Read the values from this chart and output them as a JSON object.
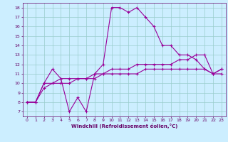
{
  "line1_x": [
    0,
    1,
    2,
    3,
    4,
    5,
    6,
    7,
    8,
    9,
    10,
    11,
    12,
    13,
    14,
    15,
    16,
    17,
    18,
    19,
    20,
    21,
    22,
    23
  ],
  "line1_y": [
    8,
    8,
    10,
    10,
    10.5,
    7,
    8.5,
    7,
    11,
    12,
    18,
    18,
    17.5,
    18,
    17,
    16,
    14,
    14,
    13,
    13,
    12.5,
    11.5,
    11,
    11.5
  ],
  "line2_x": [
    0,
    1,
    2,
    3,
    4,
    5,
    6,
    7,
    8,
    9,
    10,
    11,
    12,
    13,
    14,
    15,
    16,
    17,
    18,
    19,
    20,
    21,
    22,
    23
  ],
  "line2_y": [
    8,
    8,
    10,
    11.5,
    10.5,
    10.5,
    10.5,
    10.5,
    11,
    11,
    11.5,
    11.5,
    11.5,
    12,
    12,
    12,
    12,
    12,
    12.5,
    12.5,
    13,
    13,
    11,
    11.5
  ],
  "line3_x": [
    0,
    1,
    2,
    3,
    4,
    5,
    6,
    7,
    8,
    9,
    10,
    11,
    12,
    13,
    14,
    15,
    16,
    17,
    18,
    19,
    20,
    21,
    22,
    23
  ],
  "line3_y": [
    8,
    8,
    9.5,
    10,
    10,
    10,
    10.5,
    10.5,
    10.5,
    11,
    11,
    11,
    11,
    11,
    11.5,
    11.5,
    11.5,
    11.5,
    11.5,
    11.5,
    11.5,
    11.5,
    11,
    11
  ],
  "line_color": "#990099",
  "bg_color": "#cceeff",
  "grid_color": "#99cccc",
  "xlabel": "Windchill (Refroidissement éolien,°C)",
  "xlabel_color": "#660066",
  "tick_color": "#660066",
  "xlim": [
    -0.5,
    23.5
  ],
  "ylim": [
    6.5,
    18.5
  ],
  "xticks": [
    0,
    1,
    2,
    3,
    4,
    5,
    6,
    7,
    8,
    9,
    10,
    11,
    12,
    13,
    14,
    15,
    16,
    17,
    18,
    19,
    20,
    21,
    22,
    23
  ],
  "yticks": [
    7,
    8,
    9,
    10,
    11,
    12,
    13,
    14,
    15,
    16,
    17,
    18
  ],
  "marker": "+"
}
